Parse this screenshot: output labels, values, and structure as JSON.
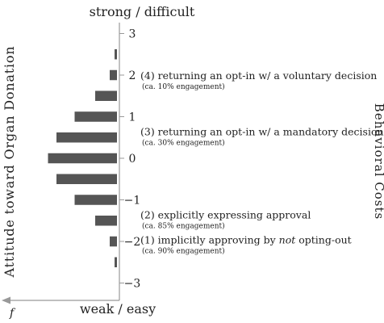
{
  "top_label": "strong / difficult",
  "bottom_label": "weak / easy",
  "left_axis_label": "Attitude toward Organ Donation",
  "right_axis_label": "Behavioral Costs",
  "freq_axis_label": "f",
  "bar_color": "#555555",
  "chart_data": {
    "type": "bar",
    "orientation": "horizontal",
    "yticks": [
      "3",
      "2",
      "1",
      "0",
      "−1",
      "−2",
      "−3"
    ],
    "ylim": [
      -3.5,
      3.5
    ],
    "y": [
      2.5,
      2.0,
      1.5,
      1.0,
      0.5,
      0.0,
      -0.5,
      -1.0,
      -1.5,
      -2.0,
      -2.5
    ],
    "values": [
      4,
      12,
      36,
      70,
      100,
      114,
      100,
      70,
      36,
      12,
      4
    ],
    "annotations": [
      {
        "y": 1.9,
        "main_pre": "(4) returning an opt-in w/ a voluntary decision",
        "main_em": "",
        "main_post": "",
        "sub": "(ca. 10% engagement)"
      },
      {
        "y": 0.55,
        "main_pre": "(3) returning an opt-in w/ a mandatory decision",
        "main_em": "",
        "main_post": "",
        "sub": "(ca. 30% engagement)"
      },
      {
        "y": -1.45,
        "main_pre": "(2) explicitly expressing approval",
        "main_em": "",
        "main_post": "",
        "sub": "(ca. 85% engagement)"
      },
      {
        "y": -2.05,
        "main_pre": "(1) implicitly approving by ",
        "main_em": "not",
        "main_post": " opting-out",
        "sub": "(ca. 90% engagement)"
      }
    ]
  }
}
